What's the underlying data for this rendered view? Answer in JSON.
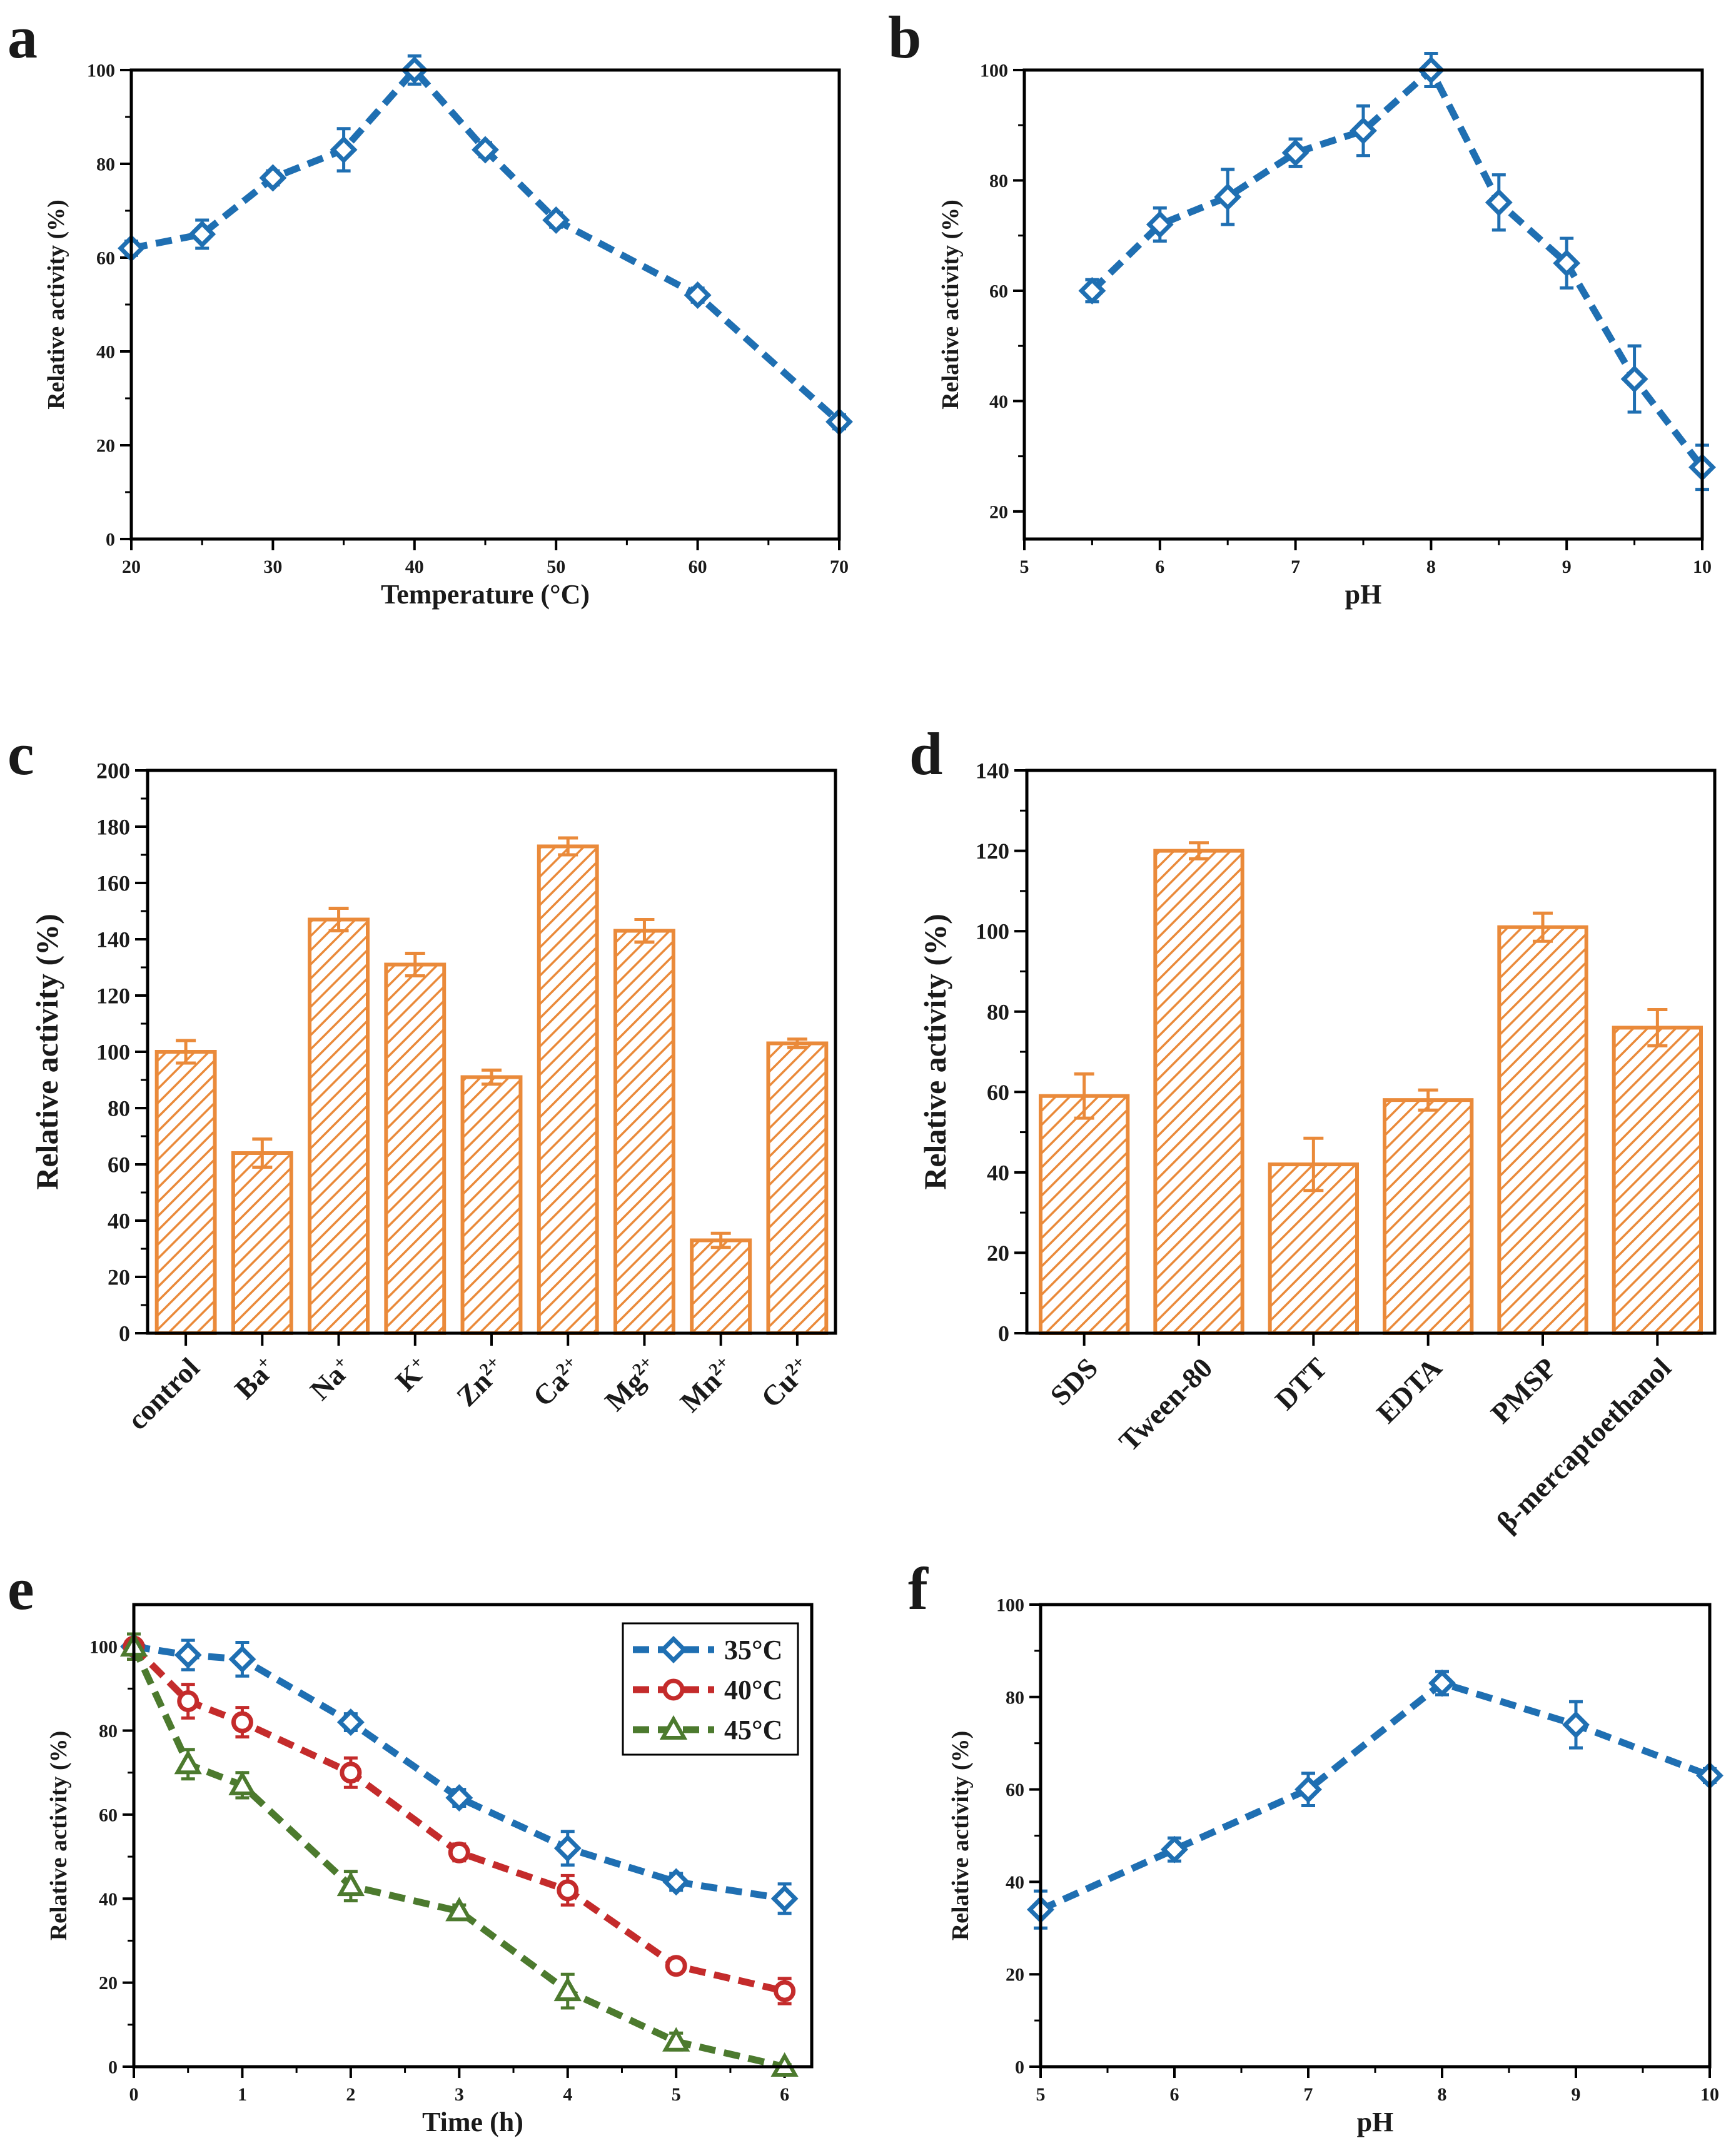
{
  "colors": {
    "blue": "#1f6fb2",
    "red": "#c42b2b",
    "green": "#4c7a2e",
    "orange": "#ea8a3a",
    "axis": "#000000"
  },
  "chart_data": [
    {
      "panel": "a",
      "type": "line",
      "xlabel": "Temperature (°C)",
      "ylabel": "Relative activity (%)",
      "xlim": [
        20,
        70
      ],
      "ylim": [
        0,
        100
      ],
      "xticks": [
        20,
        30,
        40,
        50,
        60,
        70
      ],
      "yticks": [
        0,
        20,
        40,
        60,
        80,
        100
      ],
      "series": [
        {
          "name": "",
          "color": "#1f6fb2",
          "marker": "diamond",
          "x": [
            20,
            25,
            30,
            35,
            40,
            45,
            50,
            60,
            70
          ],
          "y": [
            62,
            65,
            77,
            83,
            100,
            83,
            68,
            52,
            25
          ],
          "err": [
            1.5,
            3,
            1.5,
            4.5,
            3,
            1.5,
            1.5,
            1.5,
            1.5
          ]
        }
      ]
    },
    {
      "panel": "b",
      "type": "line",
      "xlabel": "pH",
      "ylabel": "Relative activity (%)",
      "xlim": [
        5,
        10
      ],
      "ylim": [
        15,
        100
      ],
      "xticks": [
        5,
        6,
        7,
        8,
        9,
        10
      ],
      "yticks": [
        20,
        40,
        60,
        80,
        100
      ],
      "series": [
        {
          "name": "",
          "color": "#1f6fb2",
          "marker": "diamond",
          "x": [
            5.5,
            6,
            6.5,
            7,
            7.5,
            8,
            8.5,
            9,
            9.5,
            10
          ],
          "y": [
            60,
            72,
            77,
            85,
            89,
            100,
            76,
            65,
            44,
            28
          ],
          "err": [
            2,
            3,
            5,
            2.5,
            4.5,
            3,
            5,
            4.5,
            6,
            4
          ]
        }
      ]
    },
    {
      "panel": "c",
      "type": "bar",
      "ylabel": "Relative activity (%)",
      "ylim": [
        0,
        200
      ],
      "yticks": [
        0,
        20,
        40,
        60,
        80,
        100,
        120,
        140,
        160,
        180,
        200
      ],
      "categories": [
        {
          "base": "control",
          "sup": ""
        },
        {
          "base": "Ba",
          "sup": "+"
        },
        {
          "base": "Na",
          "sup": "+"
        },
        {
          "base": "K",
          "sup": "+"
        },
        {
          "base": "Zn",
          "sup": "2+"
        },
        {
          "base": "Ca",
          "sup": "2+"
        },
        {
          "base": "Mg",
          "sup": "2+"
        },
        {
          "base": "Mn",
          "sup": "2+"
        },
        {
          "base": "Cu",
          "sup": "2+"
        }
      ],
      "values": [
        100,
        64,
        147,
        131,
        91,
        173,
        143,
        33,
        103
      ],
      "err": [
        4,
        5,
        4,
        4,
        2.5,
        3,
        4,
        2.5,
        1.5
      ],
      "color": "#ea8a3a"
    },
    {
      "panel": "d",
      "type": "bar",
      "ylabel": "Relative activity (%)",
      "ylim": [
        0,
        140
      ],
      "yticks": [
        0,
        20,
        40,
        60,
        80,
        100,
        120,
        140
      ],
      "categories": [
        {
          "base": "SDS",
          "sup": ""
        },
        {
          "base": "Tween-80",
          "sup": ""
        },
        {
          "base": "DTT",
          "sup": ""
        },
        {
          "base": "EDTA",
          "sup": ""
        },
        {
          "base": "PMSP",
          "sup": ""
        },
        {
          "base": "β-mercaptoethanol",
          "sup": ""
        }
      ],
      "values": [
        59,
        120,
        42,
        58,
        101,
        76
      ],
      "err": [
        5.5,
        2,
        6.5,
        2.5,
        3.5,
        4.5
      ],
      "color": "#ea8a3a"
    },
    {
      "panel": "e",
      "type": "line",
      "xlabel": "Time (h)",
      "ylabel": "Relative activity (%)",
      "xlim": [
        0,
        6.25
      ],
      "ylim": [
        0,
        110
      ],
      "xticks": [
        0,
        1,
        2,
        3,
        4,
        5,
        6
      ],
      "yticks": [
        0,
        20,
        40,
        60,
        80,
        100
      ],
      "legend": "top-right",
      "series": [
        {
          "name": "35°C",
          "color": "#1f6fb2",
          "marker": "diamond",
          "x": [
            0,
            0.5,
            1,
            2,
            3,
            4,
            5,
            6
          ],
          "y": [
            100,
            98,
            97,
            82,
            64,
            52,
            44,
            40
          ],
          "err": [
            3,
            3.5,
            4,
            2,
            2,
            4,
            2,
            3.5
          ]
        },
        {
          "name": "40°C",
          "color": "#c42b2b",
          "marker": "circle",
          "x": [
            0,
            0.5,
            1,
            2,
            3,
            4,
            5,
            6
          ],
          "y": [
            100,
            87,
            82,
            70,
            51,
            42,
            24,
            18
          ],
          "err": [
            3,
            4,
            3.5,
            3.5,
            2,
            3.5,
            1.5,
            3
          ]
        },
        {
          "name": "45°C",
          "color": "#4c7a2e",
          "marker": "triangle",
          "x": [
            0,
            0.5,
            1,
            2,
            3,
            4,
            5,
            6
          ],
          "y": [
            100,
            72,
            67,
            43,
            37,
            18,
            6,
            0
          ],
          "err": [
            3,
            3.5,
            3,
            3.5,
            1.5,
            4,
            2,
            0.5
          ]
        }
      ]
    },
    {
      "panel": "f",
      "type": "line",
      "xlabel": "pH",
      "ylabel": "Relative activity (%)",
      "xlim": [
        5,
        10
      ],
      "ylim": [
        0,
        100
      ],
      "xticks": [
        5,
        6,
        7,
        8,
        9,
        10
      ],
      "yticks": [
        0,
        20,
        40,
        60,
        80,
        100
      ],
      "series": [
        {
          "name": "",
          "color": "#1f6fb2",
          "marker": "diamond",
          "x": [
            5,
            6,
            7,
            8,
            9,
            10
          ],
          "y": [
            34,
            47,
            60,
            83,
            74,
            63
          ],
          "err": [
            4,
            2.5,
            3.5,
            2.5,
            5,
            1.5
          ]
        }
      ]
    }
  ]
}
